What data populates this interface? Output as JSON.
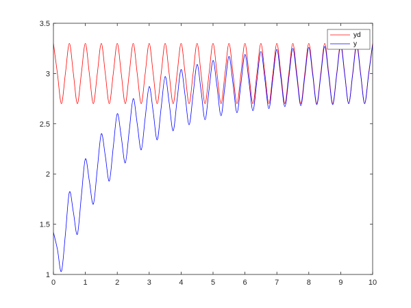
{
  "chart_data": {
    "type": "line",
    "title": "",
    "xlabel": "",
    "ylabel": "",
    "xlim": [
      0,
      10
    ],
    "ylim": [
      1,
      3.5
    ],
    "xticks": [
      0,
      1,
      2,
      3,
      4,
      5,
      6,
      7,
      8,
      9,
      10
    ],
    "xtick_labels": [
      "0",
      "1",
      "2",
      "3",
      "4",
      "5",
      "6",
      "7",
      "8",
      "9",
      "10"
    ],
    "yticks": [
      1,
      1.5,
      2,
      2.5,
      3,
      3.5
    ],
    "ytick_labels": [
      "1",
      "1.5",
      "2",
      "2.5",
      "3",
      "3.5"
    ],
    "grid": false,
    "legend_position": "top-right",
    "series": [
      {
        "name": "yd",
        "color": "#ff0000",
        "x": [
          0,
          0.125,
          0.25,
          0.375,
          0.5,
          0.625,
          0.75,
          0.875,
          1,
          1.125,
          1.25,
          1.375,
          1.5,
          1.625,
          1.75,
          1.875,
          2,
          2.125,
          2.25,
          2.375,
          2.5,
          2.625,
          2.75,
          2.875,
          3,
          3.125,
          3.25,
          3.375,
          3.5,
          3.625,
          3.75,
          3.875,
          4,
          4.125,
          4.25,
          4.375,
          4.5,
          4.625,
          4.75,
          4.875,
          5,
          5.125,
          5.25,
          5.375,
          5.5,
          5.625,
          5.75,
          5.875,
          6,
          6.125,
          6.25,
          6.375,
          6.5,
          6.625,
          6.75,
          6.875,
          7,
          7.125,
          7.25,
          7.375,
          7.5,
          7.625,
          7.75,
          7.875,
          8,
          8.125,
          8.25,
          8.375,
          8.5,
          8.625,
          8.75,
          8.875,
          9,
          9.125,
          9.25,
          9.375,
          9.5,
          9.625,
          9.75,
          9.875,
          10
        ],
        "y": [
          3.3,
          3,
          2.7,
          3,
          3.3,
          3,
          2.7,
          3,
          3.3,
          3,
          2.7,
          3,
          3.3,
          3,
          2.7,
          3,
          3.3,
          3,
          2.7,
          3,
          3.3,
          3,
          2.7,
          3,
          3.3,
          3,
          2.7,
          3,
          3.3,
          3,
          2.7,
          3,
          3.3,
          3,
          2.7,
          3,
          3.3,
          3,
          2.7,
          3,
          3.3,
          3,
          2.7,
          3,
          3.3,
          3,
          2.7,
          3,
          3.3,
          3,
          2.7,
          3,
          3.3,
          3,
          2.7,
          3,
          3.3,
          3,
          2.7,
          3,
          3.3,
          3,
          2.7,
          3,
          3.3,
          3,
          2.7,
          3,
          3.3,
          3,
          2.7,
          3,
          3.3,
          3,
          2.7,
          3,
          3.3,
          3,
          2.7,
          3,
          3.3
        ]
      },
      {
        "name": "y",
        "color": "#0000ff",
        "x": [
          0,
          0.125,
          0.25,
          0.375,
          0.5,
          0.625,
          0.75,
          0.875,
          1,
          1.125,
          1.25,
          1.375,
          1.5,
          1.625,
          1.75,
          1.875,
          2,
          2.125,
          2.25,
          2.375,
          2.5,
          2.625,
          2.75,
          2.875,
          3,
          3.125,
          3.25,
          3.375,
          3.5,
          3.625,
          3.75,
          3.875,
          4,
          4.125,
          4.25,
          4.375,
          4.5,
          4.625,
          4.75,
          4.875,
          5,
          5.125,
          5.25,
          5.375,
          5.5,
          5.625,
          5.75,
          5.875,
          6,
          6.125,
          6.25,
          6.375,
          6.5,
          6.625,
          6.75,
          6.875,
          7,
          7.125,
          7.25,
          7.375,
          7.5,
          7.625,
          7.75,
          7.875,
          8,
          8.125,
          8.25,
          8.375,
          8.5,
          8.625,
          8.75,
          8.875,
          9,
          9.125,
          9.25,
          9.375,
          9.5,
          9.625,
          9.75,
          9.875,
          10
        ],
        "y": [
          1.42,
          1.25,
          1.03,
          1.4,
          1.82,
          1.62,
          1.4,
          1.78,
          2.15,
          1.93,
          1.7,
          2.05,
          2.4,
          2.18,
          1.93,
          2.27,
          2.6,
          2.37,
          2.11,
          2.43,
          2.75,
          2.5,
          2.24,
          2.56,
          2.87,
          2.62,
          2.34,
          2.66,
          2.97,
          2.71,
          2.43,
          2.74,
          3.04,
          2.78,
          2.49,
          2.79,
          3.09,
          2.83,
          2.54,
          2.84,
          3.13,
          2.87,
          2.58,
          2.88,
          3.17,
          2.9,
          2.61,
          2.9,
          3.19,
          2.92,
          2.63,
          2.93,
          3.22,
          2.94,
          2.65,
          2.95,
          3.24,
          2.96,
          2.67,
          2.96,
          3.25,
          2.97,
          2.68,
          2.97,
          3.26,
          2.98,
          2.69,
          2.98,
          3.27,
          2.98,
          2.69,
          2.99,
          3.28,
          2.99,
          2.7,
          2.99,
          3.28,
          2.99,
          2.7,
          2.99,
          3.29
        ]
      }
    ]
  }
}
